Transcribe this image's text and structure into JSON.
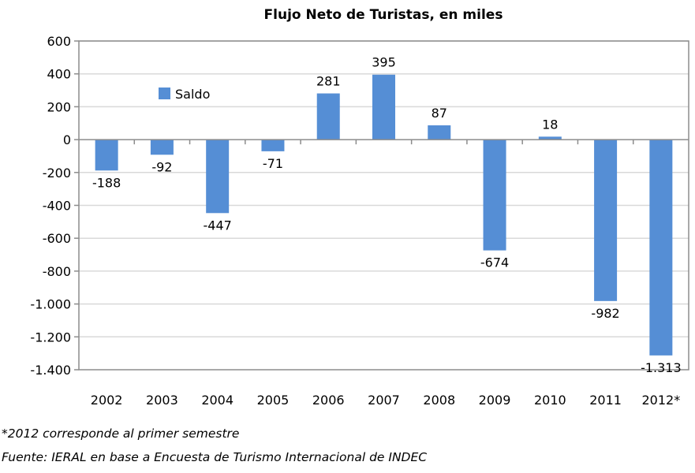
{
  "chart_data": {
    "type": "bar",
    "title": "Flujo Neto de Turistas, en miles",
    "categories": [
      "2002",
      "2003",
      "2004",
      "2005",
      "2006",
      "2007",
      "2008",
      "2009",
      "2010",
      "2011",
      "2012*"
    ],
    "series": [
      {
        "name": "Saldo",
        "values": [
          -188,
          -92,
          -447,
          -71,
          281,
          395,
          87,
          -674,
          18,
          -982,
          -1313
        ],
        "color": "#558ed5"
      }
    ],
    "data_labels": [
      "-188",
      "-92",
      "-447",
      "-71",
      "281",
      "395",
      "87",
      "-674",
      "18",
      "-982",
      "-1.313"
    ],
    "ylim": [
      -1400,
      600
    ],
    "yticks": [
      600,
      400,
      200,
      0,
      -200,
      -400,
      -600,
      -800,
      -1000,
      -1200,
      -1400
    ],
    "ytick_labels": [
      "600",
      "400",
      "200",
      "0",
      "-200",
      "-400",
      "-600",
      "-800",
      "-1.000",
      "-1.200",
      "-1.400"
    ],
    "grid": true,
    "legend": "inside top-left",
    "xlabel": "",
    "ylabel": ""
  },
  "notes": {
    "footnote": "*2012 corresponde al primer semestre",
    "source": "Fuente: IERAL en base a Encuesta de Turismo Internacional de INDEC"
  }
}
